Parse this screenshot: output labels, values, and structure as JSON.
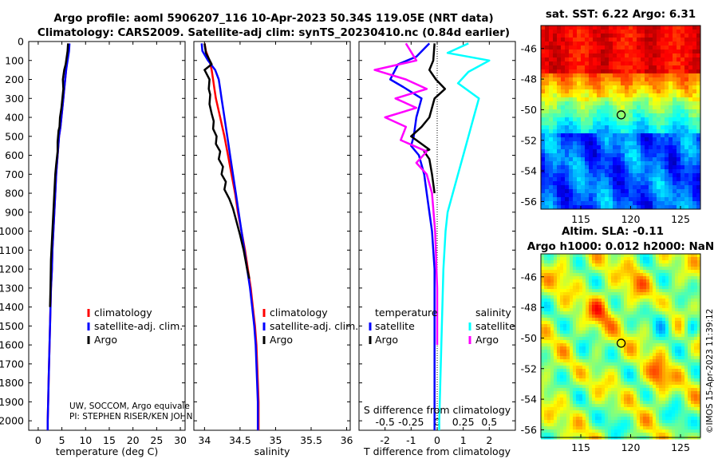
{
  "header": {
    "title_line1": "Argo profile: aoml 5906207_116 10-Apr-2023 50.34S 119.05E (NRT data)",
    "title_line2": "Climatology: CARS2009. Satellite-adj clim: synTS_20230410.nc (0.84d earlier)"
  },
  "credits": {
    "line1": "UW, SOCCOM, Argo equivale",
    "line2": "PI: STEPHEN RISER/KEN JOHN"
  },
  "timestamp": "©IMOS 15-Apr-2023 11:39:12",
  "colors": {
    "climatology": "#ff0000",
    "satellite": "#0000ff",
    "argo": "#000000",
    "sal_satellite": "#00ffff",
    "sal_argo": "#ff00ff"
  },
  "chart_data": [
    {
      "id": "temperature",
      "type": "line",
      "xlabel": "temperature (deg C)",
      "ylabel": "",
      "xlim": [
        -2,
        31
      ],
      "ylim": [
        2050,
        0
      ],
      "xticks": [
        "0",
        "5",
        "10",
        "15",
        "20",
        "25",
        "30"
      ],
      "xtick_values": [
        0,
        5,
        10,
        15,
        20,
        25,
        30
      ],
      "yticks": [
        "0",
        "100",
        "200",
        "300",
        "400",
        "500",
        "600",
        "700",
        "800",
        "900",
        "1000",
        "1100",
        "1200",
        "1300",
        "1400",
        "1500",
        "1600",
        "1700",
        "1800",
        "1900",
        "2000"
      ],
      "ytick_values": [
        0,
        100,
        200,
        300,
        400,
        500,
        600,
        700,
        800,
        900,
        1000,
        1100,
        1200,
        1300,
        1400,
        1500,
        1600,
        1700,
        1800,
        1900,
        2000
      ],
      "legend": [
        "climatology",
        "satellite-adj. clim.",
        "Argo"
      ],
      "series": [
        {
          "name": "climatology",
          "color": "#ff0000",
          "x": [
            6.4,
            6.3,
            6.1,
            5.9,
            5.7,
            5.5,
            5.3,
            5.1,
            4.9,
            4.7,
            4.4,
            4.1,
            3.8,
            3.6,
            3.4,
            3.2,
            3.0,
            2.9,
            2.7,
            2.6,
            2.5,
            2.4,
            2.3,
            2.2,
            2.1,
            2.0,
            2.0
          ],
          "depth": [
            10,
            50,
            100,
            150,
            200,
            250,
            300,
            350,
            400,
            450,
            500,
            600,
            700,
            800,
            900,
            1000,
            1100,
            1200,
            1300,
            1400,
            1500,
            1600,
            1700,
            1800,
            1900,
            2000,
            2050
          ]
        },
        {
          "name": "satellite-adj. clim.",
          "color": "#0000ff",
          "x": [
            6.6,
            6.5,
            6.2,
            5.9,
            5.7,
            5.5,
            5.3,
            5.1,
            4.9,
            4.7,
            4.4,
            4.1,
            3.8,
            3.6,
            3.4,
            3.2,
            3.0,
            2.9,
            2.7,
            2.6,
            2.5,
            2.4,
            2.3,
            2.2,
            2.1,
            2.0,
            2.0
          ],
          "depth": [
            10,
            50,
            100,
            150,
            200,
            250,
            300,
            350,
            400,
            450,
            500,
            600,
            700,
            800,
            900,
            1000,
            1100,
            1200,
            1300,
            1400,
            1500,
            1600,
            1700,
            1800,
            1900,
            2000,
            2050
          ]
        },
        {
          "name": "Argo",
          "color": "#000000",
          "x": [
            6.3,
            6.2,
            5.8,
            5.5,
            5.2,
            5.3,
            5.1,
            4.9,
            4.6,
            4.5,
            4.3,
            4.1,
            4.1,
            3.8,
            3.6,
            3.4,
            3.2,
            3.0,
            2.7,
            2.6,
            2.5
          ],
          "depth": [
            10,
            50,
            120,
            150,
            200,
            250,
            300,
            350,
            400,
            450,
            470,
            530,
            580,
            650,
            700,
            800,
            900,
            1000,
            1150,
            1300,
            1400
          ]
        }
      ]
    },
    {
      "id": "salinity",
      "type": "line",
      "xlabel": "salinity",
      "ylabel": "",
      "xlim": [
        33.85,
        36.05
      ],
      "ylim": [
        2050,
        0
      ],
      "xticks": [
        "34",
        "34.5",
        "35",
        "35.5",
        "36"
      ],
      "xtick_values": [
        34,
        34.5,
        35,
        35.5,
        36
      ],
      "legend": [
        "climatology",
        "satellite-adj. clim.",
        "Argo"
      ],
      "series": [
        {
          "name": "climatology",
          "color": "#ff0000",
          "x": [
            34.0,
            34.02,
            34.07,
            34.1,
            34.12,
            34.14,
            34.16,
            34.19,
            34.22,
            34.25,
            34.28,
            34.33,
            34.38,
            34.43,
            34.47,
            34.52,
            34.57,
            34.61,
            34.65,
            34.68,
            34.71,
            34.73,
            34.74,
            34.75,
            34.76,
            34.76
          ],
          "depth": [
            10,
            50,
            100,
            150,
            200,
            250,
            300,
            350,
            400,
            450,
            500,
            600,
            700,
            800,
            900,
            1000,
            1100,
            1200,
            1300,
            1400,
            1500,
            1600,
            1700,
            1800,
            1900,
            2050
          ]
        },
        {
          "name": "satellite-adj. clim.",
          "color": "#0000ff",
          "x": [
            33.96,
            33.97,
            34.05,
            34.15,
            34.2,
            34.22,
            34.24,
            34.26,
            34.28,
            34.3,
            34.32,
            34.36,
            34.4,
            34.44,
            34.48,
            34.52,
            34.56,
            34.6,
            34.64,
            34.67,
            34.7,
            34.72,
            34.73,
            34.74,
            34.75,
            34.75
          ],
          "depth": [
            10,
            50,
            100,
            150,
            200,
            250,
            300,
            350,
            400,
            450,
            500,
            600,
            700,
            800,
            900,
            1000,
            1100,
            1200,
            1300,
            1400,
            1500,
            1600,
            1700,
            1800,
            1900,
            2050
          ]
        },
        {
          "name": "Argo",
          "color": "#000000",
          "x": [
            34.0,
            34.02,
            34.1,
            34.0,
            34.07,
            34.06,
            34.08,
            34.07,
            34.1,
            34.13,
            34.12,
            34.17,
            34.16,
            34.22,
            34.2,
            34.26,
            34.24,
            34.3,
            34.28,
            34.35,
            34.4,
            34.45,
            34.5,
            34.55,
            34.6,
            34.63
          ],
          "depth": [
            10,
            60,
            120,
            150,
            200,
            250,
            280,
            330,
            380,
            420,
            460,
            500,
            540,
            580,
            620,
            660,
            700,
            740,
            780,
            830,
            880,
            950,
            1020,
            1100,
            1200,
            1250
          ]
        }
      ]
    },
    {
      "id": "difference",
      "type": "line",
      "xlabel": "T difference from climatology",
      "xlabel2": "S difference from climatology",
      "ylabel": "",
      "xlim": [
        -3,
        3
      ],
      "ylim": [
        2050,
        0
      ],
      "xticks": [
        "-2",
        "-1",
        "0",
        "1",
        "2"
      ],
      "xtick_values": [
        -2,
        -1,
        0,
        1,
        2
      ],
      "xticks2": [
        "-0.5",
        "-0.25",
        "0",
        "0.25",
        "0.5"
      ],
      "xtick2_values": [
        -0.5,
        -0.25,
        0,
        0.25,
        0.5
      ],
      "legend_temperature_title": "temperature",
      "legend_salinity_title": "salinity",
      "legend_temperature": [
        "satellite",
        "Argo"
      ],
      "legend_salinity": [
        "satellite",
        "Argo"
      ],
      "series": [
        {
          "name": "temperature satellite",
          "color": "#0000ff",
          "x": [
            -0.3,
            -0.8,
            -1.5,
            -1.8,
            -1.3,
            -0.6,
            -0.8,
            -0.9,
            -1.0,
            -0.7,
            -0.5,
            -0.4,
            -0.3,
            -0.2,
            -0.15,
            -0.1,
            -0.1,
            -0.1,
            -0.1,
            -0.1,
            -0.1,
            -0.1
          ],
          "depth": [
            10,
            80,
            120,
            200,
            240,
            300,
            400,
            500,
            550,
            600,
            700,
            800,
            900,
            1000,
            1100,
            1200,
            1300,
            1400,
            1500,
            1600,
            1800,
            2050
          ]
        },
        {
          "name": "temperature Argo",
          "color": "#000000",
          "x": [
            -0.1,
            -0.15,
            -0.3,
            -0.05,
            0.3,
            -0.1,
            -0.3,
            -0.6,
            -1.0,
            -0.6,
            -0.3,
            -0.5,
            -0.3,
            -0.2,
            -0.1
          ],
          "depth": [
            10,
            100,
            150,
            200,
            250,
            300,
            400,
            450,
            500,
            540,
            570,
            580,
            620,
            700,
            800
          ]
        },
        {
          "name": "salinity satellite",
          "color": "#00ffff",
          "x": [
            0.3,
            0.1,
            0.5,
            0.3,
            0.2,
            0.4,
            0.35,
            0.3,
            0.25,
            0.2,
            0.15,
            0.1,
            0.08,
            0.06,
            0.05,
            0.04,
            0.03,
            0.02,
            0.02
          ],
          "depth": [
            10,
            60,
            100,
            160,
            220,
            300,
            400,
            500,
            600,
            700,
            800,
            900,
            1000,
            1200,
            1400,
            1600,
            1800,
            2000,
            2050
          ]
        },
        {
          "name": "salinity Argo",
          "color": "#ff00ff",
          "x": [
            -0.3,
            -0.2,
            -0.6,
            -0.3,
            -0.1,
            -0.4,
            -0.2,
            -0.5,
            -0.3,
            -0.35,
            -0.1,
            -0.2,
            -0.1,
            -0.05,
            -0.02,
            0.0,
            0.0
          ],
          "depth": [
            10,
            100,
            150,
            200,
            250,
            300,
            350,
            400,
            450,
            520,
            580,
            640,
            700,
            800,
            1000,
            1300,
            1600
          ]
        }
      ]
    },
    {
      "id": "sst_map",
      "type": "heatmap",
      "title": "sat. SST: 6.22 Argo: 6.31",
      "xlim": [
        111,
        127
      ],
      "ylim": [
        -56.5,
        -44.5
      ],
      "xticks": [
        "115",
        "120",
        "125"
      ],
      "xtick_values": [
        115,
        120,
        125
      ],
      "yticks": [
        "-46",
        "-48",
        "-50",
        "-52",
        "-54",
        "-56"
      ],
      "ytick_values": [
        -46,
        -48,
        -50,
        -52,
        -54,
        -56
      ],
      "marker": {
        "lon": 119.05,
        "lat": -50.34
      }
    },
    {
      "id": "sla_map",
      "type": "heatmap",
      "title": "Altim. SLA: -0.11",
      "subtitle": "Argo h1000: 0.012 h2000: NaN",
      "xlim": [
        111,
        127
      ],
      "ylim": [
        -56.5,
        -44.5
      ],
      "xticks": [
        "115",
        "120",
        "125"
      ],
      "xtick_values": [
        115,
        120,
        125
      ],
      "yticks": [
        "-46",
        "-48",
        "-50",
        "-52",
        "-54",
        "-56"
      ],
      "ytick_values": [
        -46,
        -48,
        -50,
        -52,
        -54,
        -56
      ],
      "marker": {
        "lon": 119.05,
        "lat": -50.34
      }
    }
  ]
}
